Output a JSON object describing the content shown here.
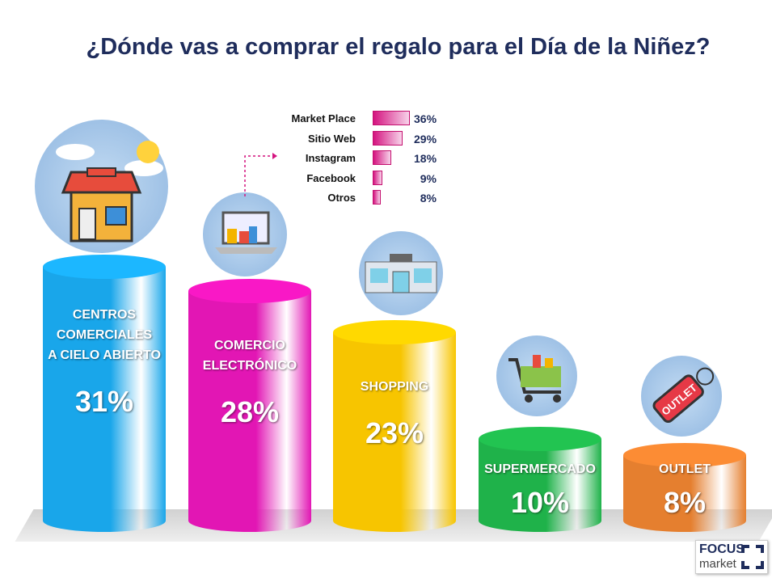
{
  "title": "¿Dónde vas a comprar el regalo para el Día de la Niñez?",
  "chart_data": [
    {
      "type": "bar",
      "title": "¿Dónde vas a comprar el regalo para el Día de la Niñez?",
      "categories": [
        "CENTROS COMERCIALES A CIELO ABIERTO",
        "COMERCIO ELECTRÓNICO",
        "SHOPPING",
        "SUPERMERCADO",
        "OUTLET"
      ],
      "name_lines": [
        [
          "CENTROS",
          "COMERCIALES",
          "A CIELO ABIERTO"
        ],
        [
          "COMERCIO",
          "ELECTRÓNICO"
        ],
        [
          "SHOPPING"
        ],
        [
          "SUPERMERCADO"
        ],
        [
          "OUTLET"
        ]
      ],
      "values": [
        31,
        28,
        23,
        10,
        8
      ],
      "labels": [
        "31%",
        "28%",
        "23%",
        "10%",
        "8%"
      ],
      "colors": [
        "#19a6ea",
        "#e216b4",
        "#f7c500",
        "#1fb24a",
        "#e57f2f"
      ],
      "ylim": [
        0,
        31
      ]
    },
    {
      "type": "bar",
      "orientation": "horizontal",
      "categories": [
        "Market Place",
        "Sitio Web",
        "Instagram",
        "Facebook",
        "Otros"
      ],
      "values": [
        36,
        29,
        18,
        9,
        8
      ],
      "labels": [
        "36%",
        "29%",
        "18%",
        "9%",
        "8%"
      ],
      "color": "#d4137f",
      "xlim": [
        0,
        36
      ]
    }
  ],
  "logo": {
    "line1": "FOCUS",
    "line2": "market"
  }
}
